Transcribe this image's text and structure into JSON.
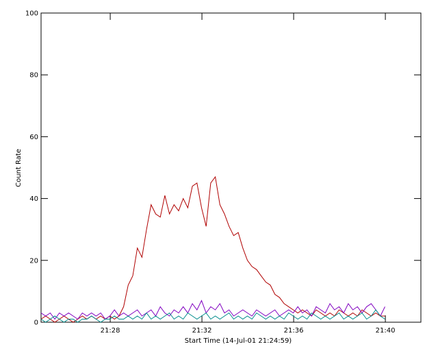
{
  "chart_data": {
    "type": "line",
    "x_label": "Start Time (14-Jul-01 21:24:59)",
    "y_label": "Count Rate",
    "xlim": [
      0,
      994
    ],
    "ylim": [
      0,
      100
    ],
    "xticks": [
      {
        "value": 181,
        "label": "21:28"
      },
      {
        "value": 421,
        "label": "21:32"
      },
      {
        "value": 661,
        "label": "21:36"
      },
      {
        "value": 901,
        "label": "21:40"
      }
    ],
    "yticks": [
      0,
      20,
      40,
      60,
      80,
      100
    ],
    "x": [
      0,
      12,
      24,
      36,
      48,
      60,
      72,
      84,
      96,
      108,
      120,
      132,
      144,
      156,
      168,
      180,
      192,
      204,
      216,
      228,
      240,
      252,
      264,
      276,
      288,
      300,
      312,
      324,
      336,
      348,
      360,
      372,
      384,
      396,
      408,
      420,
      432,
      444,
      456,
      468,
      480,
      492,
      504,
      516,
      528,
      540,
      552,
      564,
      576,
      588,
      600,
      612,
      624,
      636,
      648,
      660,
      672,
      684,
      696,
      708,
      720,
      732,
      744,
      756,
      768,
      780,
      792,
      804,
      816,
      828,
      840,
      852,
      864,
      876,
      888,
      900
    ],
    "series": [
      {
        "color": "#b00000",
        "values": [
          1,
          2,
          1,
          0,
          1,
          2,
          1,
          0,
          1,
          2,
          1,
          2,
          1,
          2,
          1,
          2,
          1,
          2,
          5,
          12,
          15,
          24,
          21,
          30,
          38,
          35,
          34,
          41,
          35,
          38,
          36,
          40,
          37,
          44,
          45,
          37,
          31,
          45,
          47,
          38,
          35,
          31,
          28,
          29,
          24,
          20,
          18,
          17,
          15,
          13,
          12,
          9,
          8,
          6,
          5,
          4,
          3,
          4,
          3,
          2,
          4,
          3,
          2,
          3,
          2,
          4,
          3,
          2,
          3,
          2,
          4,
          3,
          2,
          3,
          2,
          2
        ]
      },
      {
        "color": "#8000c0",
        "values": [
          3,
          2,
          3,
          1,
          3,
          2,
          3,
          2,
          1,
          3,
          2,
          3,
          2,
          3,
          1,
          2,
          4,
          2,
          3,
          2,
          3,
          4,
          2,
          3,
          4,
          2,
          5,
          3,
          2,
          4,
          3,
          5,
          3,
          6,
          4,
          7,
          3,
          5,
          4,
          6,
          3,
          4,
          2,
          3,
          4,
          3,
          2,
          4,
          3,
          2,
          3,
          4,
          2,
          3,
          4,
          3,
          5,
          3,
          4,
          2,
          5,
          4,
          3,
          6,
          4,
          5,
          3,
          6,
          4,
          5,
          3,
          5,
          6,
          4,
          2,
          5
        ]
      },
      {
        "color": "#008b8b",
        "values": [
          1,
          0,
          1,
          2,
          1,
          0,
          1,
          1,
          0,
          1,
          1,
          2,
          1,
          0,
          1,
          1,
          2,
          1,
          1,
          2,
          1,
          2,
          1,
          3,
          1,
          2,
          1,
          2,
          3,
          1,
          2,
          1,
          3,
          2,
          1,
          2,
          3,
          1,
          2,
          1,
          2,
          3,
          1,
          2,
          1,
          2,
          1,
          3,
          2,
          1,
          2,
          1,
          2,
          1,
          3,
          2,
          1,
          2,
          1,
          3,
          2,
          1,
          2,
          1,
          2,
          3,
          1,
          2,
          1,
          2,
          3,
          1,
          2,
          4,
          2,
          1
        ]
      }
    ]
  }
}
